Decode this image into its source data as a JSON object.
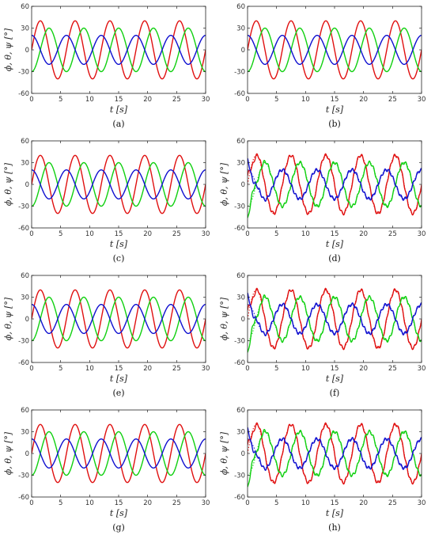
{
  "figure": {
    "x_label": "t  [s]",
    "y_label": "ϕ, θ, ψ [°]",
    "colors": {
      "phi": "#e01010",
      "theta": "#10d010",
      "psi": "#1010d0"
    }
  },
  "chart_data": [
    {
      "panel": "(a)",
      "type": "line",
      "xlim": [
        0,
        30
      ],
      "ylim": [
        -60,
        60
      ],
      "xticks": [
        0,
        5,
        10,
        15,
        20,
        25,
        30
      ],
      "yticks": [
        -60,
        -30,
        0,
        30,
        60
      ],
      "grid": false,
      "show_ylabel": true,
      "estimated": false,
      "series": [
        {
          "color": "#e01010",
          "amplitude": 40,
          "period": 6,
          "phase_deg": 0
        },
        {
          "color": "#10d010",
          "amplitude": 30,
          "period": 6,
          "phase_deg": -90
        },
        {
          "color": "#1010d0",
          "amplitude": 20,
          "period": 6,
          "phase_deg": 90
        }
      ]
    },
    {
      "panel": "(b)",
      "type": "line",
      "xlim": [
        0,
        30
      ],
      "ylim": [
        -60,
        60
      ],
      "xticks": [
        0,
        5,
        10,
        15,
        20,
        25,
        30
      ],
      "yticks": [
        -60,
        -30,
        0,
        30,
        60
      ],
      "grid": false,
      "show_ylabel": false,
      "estimated": false,
      "series": [
        {
          "color": "#e01010",
          "amplitude": 40,
          "period": 6,
          "phase_deg": 0
        },
        {
          "color": "#10d010",
          "amplitude": 30,
          "period": 6,
          "phase_deg": -90
        },
        {
          "color": "#1010d0",
          "amplitude": 20,
          "period": 6,
          "phase_deg": 90
        }
      ]
    },
    {
      "panel": "(c)",
      "type": "line",
      "xlim": [
        0,
        30
      ],
      "ylim": [
        -60,
        60
      ],
      "xticks": [
        0,
        5,
        10,
        15,
        20,
        25,
        30
      ],
      "yticks": [
        -60,
        -30,
        0,
        30,
        60
      ],
      "grid": false,
      "show_ylabel": true,
      "estimated": false,
      "series": [
        {
          "color": "#e01010",
          "amplitude": 40,
          "period": 6,
          "phase_deg": 0
        },
        {
          "color": "#10d010",
          "amplitude": 30,
          "period": 6,
          "phase_deg": -90
        },
        {
          "color": "#1010d0",
          "amplitude": 20,
          "period": 6,
          "phase_deg": 90
        }
      ]
    },
    {
      "panel": "(d)",
      "type": "line",
      "xlim": [
        0,
        30
      ],
      "ylim": [
        -60,
        60
      ],
      "xticks": [
        0,
        5,
        10,
        15,
        20,
        25,
        30
      ],
      "yticks": [
        -60,
        -30,
        0,
        30,
        60
      ],
      "grid": false,
      "show_ylabel": true,
      "estimated": true,
      "series": [
        {
          "color": "#e01010",
          "amplitude": 40,
          "period": 6,
          "phase_deg": 0
        },
        {
          "color": "#10d010",
          "amplitude": 30,
          "period": 6,
          "phase_deg": -90
        },
        {
          "color": "#1010d0",
          "amplitude": 20,
          "period": 6,
          "phase_deg": 90
        }
      ]
    },
    {
      "panel": "(e)",
      "type": "line",
      "xlim": [
        0,
        30
      ],
      "ylim": [
        -60,
        60
      ],
      "xticks": [
        0,
        5,
        10,
        15,
        20,
        25,
        30
      ],
      "yticks": [
        -60,
        -30,
        0,
        30,
        60
      ],
      "grid": false,
      "show_ylabel": true,
      "estimated": false,
      "series": [
        {
          "color": "#e01010",
          "amplitude": 40,
          "period": 6,
          "phase_deg": 0
        },
        {
          "color": "#10d010",
          "amplitude": 30,
          "period": 6,
          "phase_deg": -90
        },
        {
          "color": "#1010d0",
          "amplitude": 20,
          "period": 6,
          "phase_deg": 90
        }
      ]
    },
    {
      "panel": "(f)",
      "type": "line",
      "xlim": [
        0,
        30
      ],
      "ylim": [
        -60,
        60
      ],
      "xticks": [
        0,
        5,
        10,
        15,
        20,
        25,
        30
      ],
      "yticks": [
        -60,
        -30,
        0,
        30,
        60
      ],
      "grid": false,
      "show_ylabel": true,
      "estimated": true,
      "series": [
        {
          "color": "#e01010",
          "amplitude": 40,
          "period": 6,
          "phase_deg": 0
        },
        {
          "color": "#10d010",
          "amplitude": 30,
          "period": 6,
          "phase_deg": -90
        },
        {
          "color": "#1010d0",
          "amplitude": 20,
          "period": 6,
          "phase_deg": 90
        }
      ]
    },
    {
      "panel": "(g)",
      "type": "line",
      "xlim": [
        0,
        30
      ],
      "ylim": [
        -60,
        60
      ],
      "xticks": [
        0,
        5,
        10,
        15,
        20,
        25,
        30
      ],
      "yticks": [
        -60,
        -30,
        0,
        30,
        60
      ],
      "grid": false,
      "show_ylabel": true,
      "estimated": false,
      "series": [
        {
          "color": "#e01010",
          "amplitude": 40,
          "period": 6,
          "phase_deg": 0
        },
        {
          "color": "#10d010",
          "amplitude": 30,
          "period": 6,
          "phase_deg": -90
        },
        {
          "color": "#1010d0",
          "amplitude": 20,
          "period": 6,
          "phase_deg": 90
        }
      ]
    },
    {
      "panel": "(h)",
      "type": "line",
      "xlim": [
        0,
        30
      ],
      "ylim": [
        -60,
        60
      ],
      "xticks": [
        0,
        5,
        10,
        15,
        20,
        25,
        30
      ],
      "yticks": [
        -60,
        -30,
        0,
        30,
        60
      ],
      "grid": false,
      "show_ylabel": true,
      "estimated": true,
      "series": [
        {
          "color": "#e01010",
          "amplitude": 40,
          "period": 6,
          "phase_deg": 0
        },
        {
          "color": "#10d010",
          "amplitude": 30,
          "period": 6,
          "phase_deg": -90
        },
        {
          "color": "#1010d0",
          "amplitude": 20,
          "period": 6,
          "phase_deg": 90
        }
      ]
    }
  ]
}
